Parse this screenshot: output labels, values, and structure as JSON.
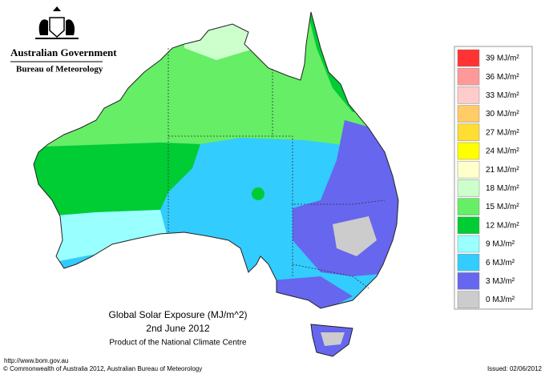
{
  "header": {
    "agency": "Australian Government",
    "bureau": "Bureau of Meteorology"
  },
  "map": {
    "title": "Global Solar Exposure (MJ/m^2)",
    "date": "2nd June 2012",
    "product": "Product of the National Climate Centre"
  },
  "legend": [
    {
      "label": "39 MJ/m²",
      "color": "#ff3333"
    },
    {
      "label": "36 MJ/m²",
      "color": "#ff9999"
    },
    {
      "label": "33 MJ/m²",
      "color": "#ffcccc"
    },
    {
      "label": "30 MJ/m²",
      "color": "#ffcc66"
    },
    {
      "label": "27 MJ/m²",
      "color": "#ffdd33"
    },
    {
      "label": "24 MJ/m²",
      "color": "#ffff00"
    },
    {
      "label": "21 MJ/m²",
      "color": "#ffffcc"
    },
    {
      "label": "18 MJ/m²",
      "color": "#ccffcc"
    },
    {
      "label": "15 MJ/m²",
      "color": "#66ee66"
    },
    {
      "label": "12 MJ/m²",
      "color": "#00cc33"
    },
    {
      "label": "9 MJ/m²",
      "color": "#99ffff"
    },
    {
      "label": "6 MJ/m²",
      "color": "#33ccff"
    },
    {
      "label": "3 MJ/m²",
      "color": "#6666ee"
    },
    {
      "label": "0 MJ/m²",
      "color": "#cccccc"
    }
  ],
  "footer": {
    "url": "http://www.bom.gov.au",
    "copyright": "© Commonwealth of Australia 2012, Australian Bureau of Meteorology",
    "issued": "Issued: 02/06/2012"
  }
}
